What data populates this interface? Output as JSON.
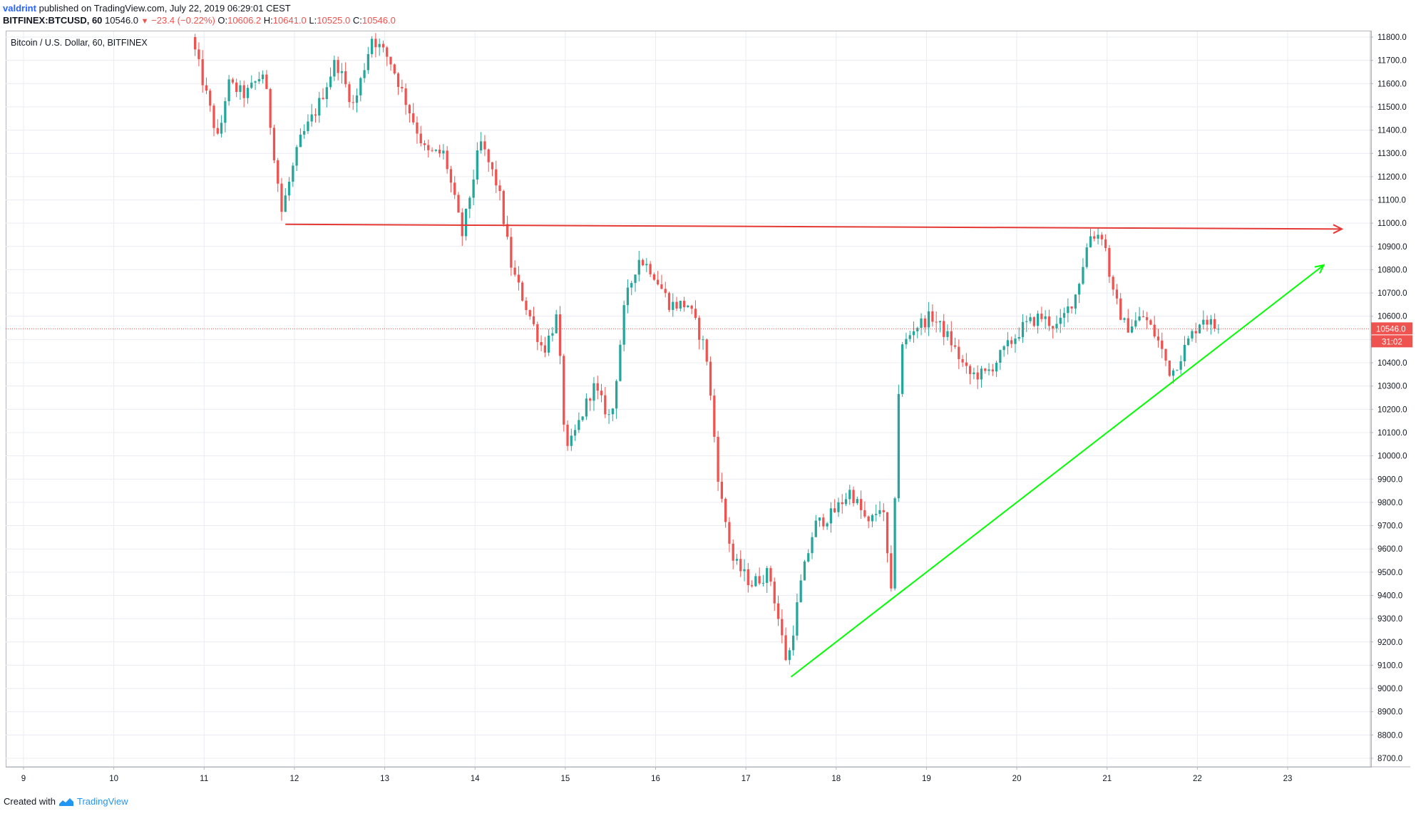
{
  "header": {
    "author": "valdrint",
    "published": "published on TradingView.com, July 22, 2019 06:29:01 CEST",
    "symbol": "BITFINEX:BTCUSD, 60",
    "last": "10546.0",
    "change": "−23.4 (−0.22%)",
    "o_label": "O:",
    "o_val": "10606.2",
    "h_label": "H:",
    "h_val": "10641.0",
    "l_label": "L:",
    "l_val": "10525.0",
    "c_label": "C:",
    "c_val": "10546.0"
  },
  "chart_title": "Bitcoin / U.S. Dollar, 60, BITFINEX",
  "footer": {
    "created_with": "Created with",
    "brand": "TradingView"
  },
  "colors": {
    "up": "#26a69a",
    "down": "#ef5350",
    "resistance": "#e53935",
    "support": "#00ff00",
    "grid": "#e9ecf2"
  },
  "chart_data": {
    "type": "candlestick",
    "title": "Bitcoin / U.S. Dollar, 60, BITFINEX",
    "x_tick_labels": [
      "9",
      "10",
      "11",
      "12",
      "13",
      "14",
      "15",
      "16",
      "17",
      "18",
      "19",
      "20",
      "21",
      "22",
      "23"
    ],
    "y_tick_labels": [
      "11800.0",
      "11700.0",
      "11600.0",
      "11500.0",
      "11400.0",
      "11300.0",
      "11200.0",
      "11100.0",
      "11000.0",
      "10900.0",
      "10800.0",
      "10700.0",
      "10600.0",
      "10500.0",
      "10400.0",
      "10300.0",
      "10200.0",
      "10100.0",
      "10000.0",
      "9900.0",
      "9800.0",
      "9700.0",
      "9600.0",
      "9500.0",
      "9400.0",
      "9300.0",
      "9200.0",
      "9100.0",
      "9000.0",
      "8900.0",
      "8800.0",
      "8700.0"
    ],
    "x_domain_days": [
      9,
      23
    ],
    "ylim": [
      8650,
      11820
    ],
    "last_price": 10546.0,
    "last_price_label": "10546.0",
    "countdown_label": "31:02",
    "resistance_line": {
      "x": [
        11.9,
        23.6
      ],
      "y": [
        10995,
        10975
      ]
    },
    "support_line": {
      "x": [
        17.5,
        23.4
      ],
      "y": [
        9050,
        10820
      ]
    },
    "price_path": [
      [
        10.9,
        11800
      ],
      [
        11.0,
        11650
      ],
      [
        11.2,
        11350
      ],
      [
        11.3,
        11600
      ],
      [
        11.5,
        11550
      ],
      [
        11.7,
        11650
      ],
      [
        11.9,
        11050
      ],
      [
        12.1,
        11350
      ],
      [
        12.3,
        11500
      ],
      [
        12.5,
        11700
      ],
      [
        12.7,
        11500
      ],
      [
        12.9,
        11800
      ],
      [
        13.1,
        11700
      ],
      [
        13.3,
        11500
      ],
      [
        13.5,
        11300
      ],
      [
        13.7,
        11300
      ],
      [
        13.9,
        10950
      ],
      [
        14.1,
        11350
      ],
      [
        14.3,
        11150
      ],
      [
        14.45,
        10800
      ],
      [
        14.6,
        10650
      ],
      [
        14.8,
        10450
      ],
      [
        14.95,
        10600
      ],
      [
        15.05,
        10000
      ],
      [
        15.2,
        10150
      ],
      [
        15.35,
        10300
      ],
      [
        15.55,
        10150
      ],
      [
        15.7,
        10650
      ],
      [
        15.85,
        10850
      ],
      [
        16.0,
        10800
      ],
      [
        16.2,
        10650
      ],
      [
        16.4,
        10650
      ],
      [
        16.6,
        10450
      ],
      [
        16.75,
        9850
      ],
      [
        16.9,
        9550
      ],
      [
        17.1,
        9450
      ],
      [
        17.3,
        9500
      ],
      [
        17.5,
        9100
      ],
      [
        17.65,
        9450
      ],
      [
        17.8,
        9700
      ],
      [
        18.0,
        9750
      ],
      [
        18.2,
        9850
      ],
      [
        18.4,
        9700
      ],
      [
        18.55,
        9800
      ],
      [
        18.65,
        9400
      ],
      [
        18.75,
        10450
      ],
      [
        18.9,
        10550
      ],
      [
        19.1,
        10600
      ],
      [
        19.3,
        10500
      ],
      [
        19.5,
        10350
      ],
      [
        19.7,
        10350
      ],
      [
        19.9,
        10450
      ],
      [
        20.1,
        10550
      ],
      [
        20.3,
        10600
      ],
      [
        20.5,
        10550
      ],
      [
        20.7,
        10700
      ],
      [
        20.85,
        10950
      ],
      [
        21.0,
        10950
      ],
      [
        21.1,
        10700
      ],
      [
        21.25,
        10550
      ],
      [
        21.45,
        10600
      ],
      [
        21.6,
        10500
      ],
      [
        21.75,
        10350
      ],
      [
        21.95,
        10500
      ],
      [
        22.1,
        10600
      ],
      [
        22.25,
        10546
      ]
    ]
  }
}
